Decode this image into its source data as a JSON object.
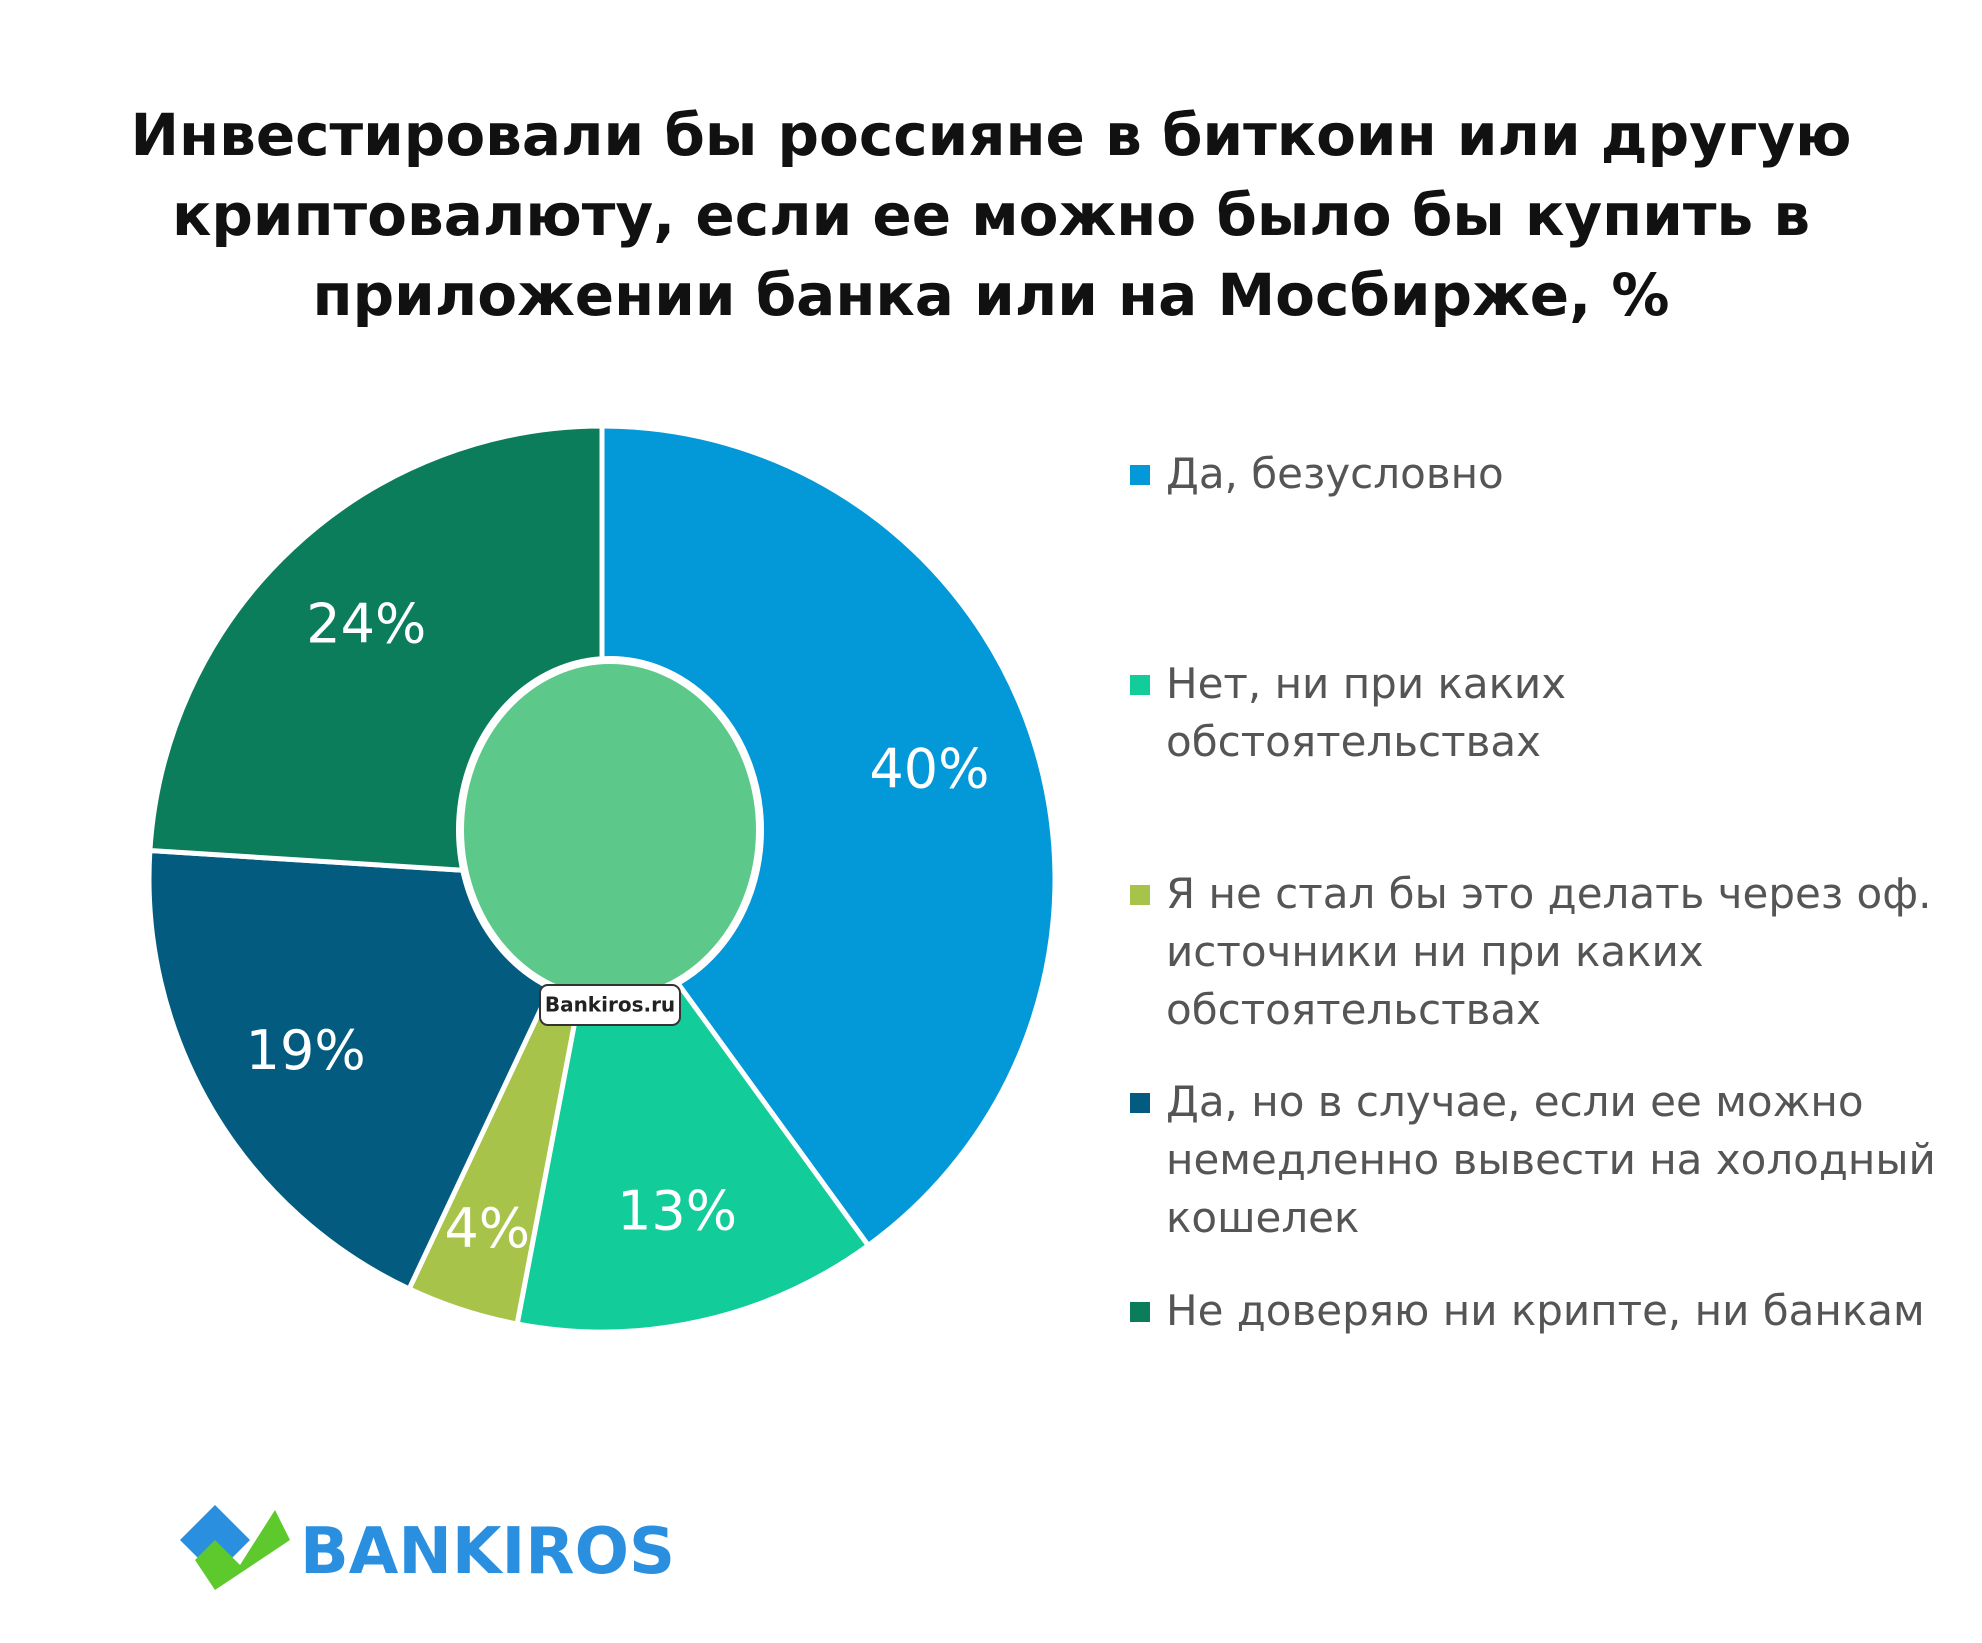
{
  "chart_data": {
    "type": "pie",
    "title": "Инвестировали бы россияне в биткоин или другую криптовалюту, если ее можно было бы купить в приложении банка или на Мосбирже, %",
    "categories": [
      "Да, безусловно",
      "Нет, ни при каких обстоятельствах",
      "Я не стал бы это делать через оф. источники ни при каких обстоятельствах",
      "Да, но в случае, если ее можно немедленно вывести на холодный кошелек",
      "Не доверяю ни крипте, ни банкам"
    ],
    "values": [
      40,
      13,
      4,
      19,
      24
    ],
    "value_labels": [
      "40%",
      "13%",
      "4%",
      "19%",
      "24%"
    ],
    "colors": [
      "#0398d8",
      "#12cc9a",
      "#a8c34a",
      "#035c80",
      "#0b7d5b"
    ],
    "legend": "right"
  },
  "mascot_label": "Bankiros.ru",
  "logo": "BANKIROS"
}
